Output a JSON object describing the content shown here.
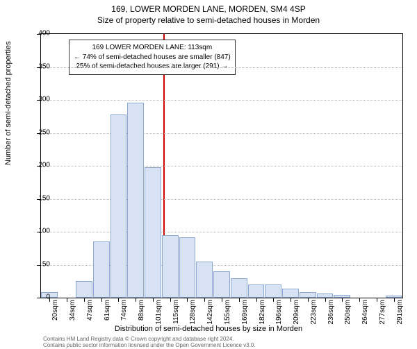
{
  "title_line1": "169, LOWER MORDEN LANE, MORDEN, SM4 4SP",
  "title_line2": "Size of property relative to semi-detached houses in Morden",
  "yaxis_title": "Number of semi-detached properties",
  "xaxis_title": "Distribution of semi-detached houses by size in Morden",
  "annotation": {
    "line1": "169 LOWER MORDEN LANE: 113sqm",
    "line2": "← 74% of semi-detached houses are smaller (847)",
    "line3": "25% of semi-detached houses are larger (291) →"
  },
  "chart": {
    "type": "histogram",
    "ylim": [
      0,
      400
    ],
    "y_ticks": [
      0,
      50,
      100,
      150,
      200,
      250,
      300,
      350,
      400
    ],
    "x_labels": [
      "20sqm",
      "34sqm",
      "47sqm",
      "61sqm",
      "74sqm",
      "88sqm",
      "101sqm",
      "115sqm",
      "128sqm",
      "142sqm",
      "155sqm",
      "169sqm",
      "182sqm",
      "196sqm",
      "209sqm",
      "223sqm",
      "236sqm",
      "250sqm",
      "264sqm",
      "277sqm",
      "291sqm"
    ],
    "bars": [
      8,
      0,
      25,
      85,
      278,
      296,
      198,
      95,
      92,
      55,
      40,
      30,
      20,
      20,
      14,
      8,
      6,
      4,
      0,
      0,
      3
    ],
    "bar_fill": "#d7e3f4",
    "bar_border": "#8aa8d0",
    "grid_color": "#bbbbbb",
    "vline_x_ratio": 0.338,
    "vline_color": "#d00000"
  },
  "footer_line1": "Contains HM Land Registry data © Crown copyright and database right 2024.",
  "footer_line2": "Contains public sector information licensed under the Open Government Licence v3.0."
}
